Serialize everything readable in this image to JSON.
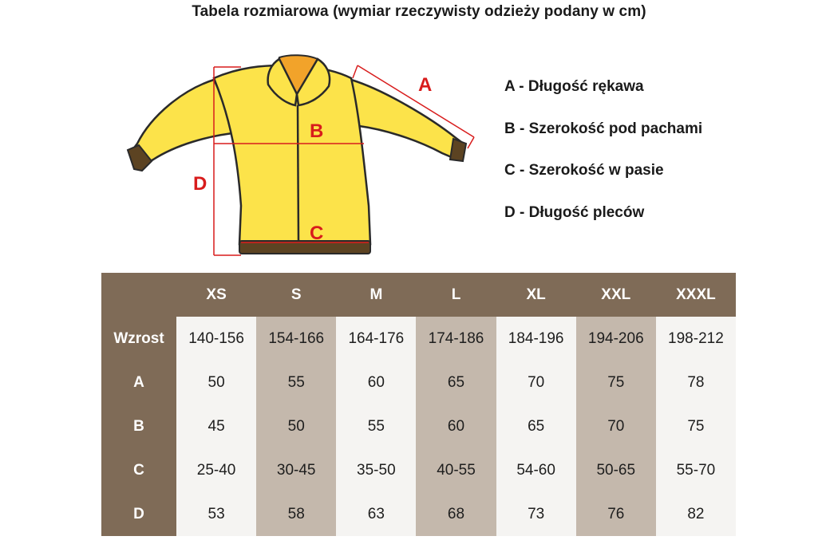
{
  "title": "Tabela rozmiarowa (wymiar rzeczywisty odzieży podany w cm)",
  "diagram": {
    "labels": {
      "a": "A",
      "b": "B",
      "c": "C",
      "d": "D"
    },
    "colors": {
      "jacket": "#fce34a",
      "outline": "#2a2a2a",
      "collar_inner": "#f2a32a",
      "cuff": "#5c4322",
      "measure": "#d81c1c"
    }
  },
  "legend": [
    "A - Długość rękawa",
    "B - Szerokość pod pachami",
    "C - Szerokość w pasie",
    "D - Długość pleców"
  ],
  "table": {
    "colors": {
      "header": "#7f6b57",
      "light": "#f5f4f2",
      "dark": "#c4b8ac"
    },
    "columns": [
      "XS",
      "S",
      "M",
      "L",
      "XL",
      "XXL",
      "XXXL"
    ],
    "rows": [
      {
        "label": "Wzrost",
        "values": [
          "140-156",
          "154-166",
          "164-176",
          "174-186",
          "184-196",
          "194-206",
          "198-212"
        ]
      },
      {
        "label": "A",
        "values": [
          "50",
          "55",
          "60",
          "65",
          "70",
          "75",
          "78"
        ]
      },
      {
        "label": "B",
        "values": [
          "45",
          "50",
          "55",
          "60",
          "65",
          "70",
          "75"
        ]
      },
      {
        "label": "C",
        "values": [
          "25-40",
          "30-45",
          "35-50",
          "40-55",
          "54-60",
          "50-65",
          "55-70"
        ]
      },
      {
        "label": "D",
        "values": [
          "53",
          "58",
          "63",
          "68",
          "73",
          "76",
          "82"
        ]
      }
    ]
  }
}
